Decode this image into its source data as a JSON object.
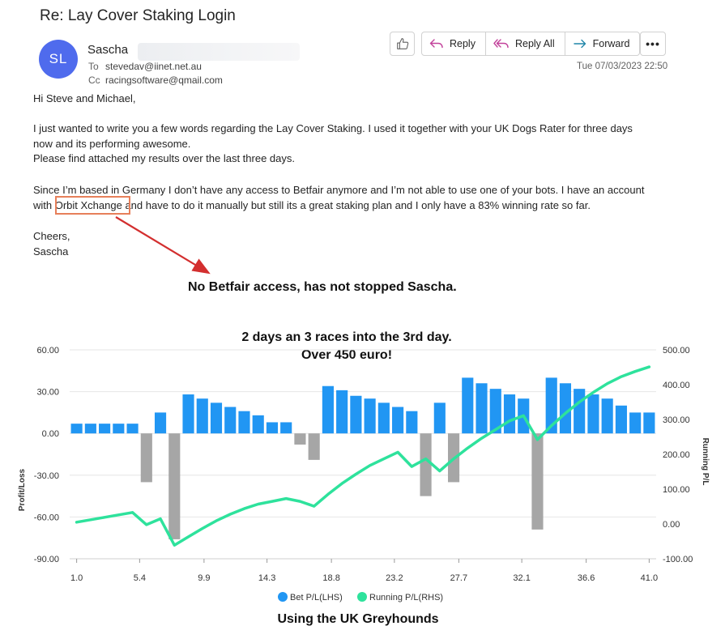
{
  "email": {
    "subject": "Re: Lay Cover Staking Login",
    "avatar_initials": "SL",
    "avatar_color": "#4f6bed",
    "sender_name": "Sascha",
    "to_label": "To",
    "to_value": "stevedav@iinet.net.au",
    "cc_label": "Cc",
    "cc_value": "racingsoftware@qmail.com",
    "actions": {
      "reply": "Reply",
      "reply_all": "Reply All",
      "forward": "Forward",
      "more": "•••"
    },
    "timestamp": "Tue 07/03/2023 22:50",
    "greeting": "Hi Steve and Michael,",
    "para1_line1": "I just wanted to write you a few words regarding the Lay Cover Staking. I used it together with your UK Dogs Rater for three days",
    "para1_line2": "now and its performing awesome.",
    "para1_line3": "Please find attached my results over the last three days.",
    "para2_line1": "Since I’m based in Germany I don’t have any access to Betfair anymore and I’m not able to use one of your bots. I have an account",
    "para2_line2": "with Orbit Xchange and have to do it manually but still its a great staking plan and I only have a 83% winning rate so far.",
    "signoff": "Cheers,",
    "signature": "Sascha"
  },
  "annotation": {
    "highlight_color": "#e77f5a",
    "arrow_color": "#d32f2f",
    "callout": "No Betfair access, has not stopped Sascha."
  },
  "chart_data": {
    "type": "bar",
    "title_line1": "2 days an 3 races into the 3rd day.",
    "title_line2": "Over 450 euro!",
    "caption": "Using the UK Greyhounds",
    "ylabel_left": "Profit/Loss",
    "ylabel_right": "Running P/L",
    "ylim_left": [
      -90,
      60
    ],
    "ylim_right": [
      -100,
      500
    ],
    "yticks_left": [
      "60.00",
      "30.00",
      "0.00",
      "-30.00",
      "-60.00",
      "-90.00"
    ],
    "yticks_right": [
      "500.00",
      "400.00",
      "300.00",
      "200.00",
      "100.00",
      "0.00",
      "-100.00"
    ],
    "xticks": [
      "1.0",
      "5.4",
      "9.9",
      "14.3",
      "18.8",
      "23.2",
      "27.7",
      "32.1",
      "36.6",
      "41.0"
    ],
    "xlim": [
      1,
      41
    ],
    "positive_color": "#2196f3",
    "negative_color": "#a6a6a6",
    "line_color": "#2ee29c",
    "grid": true,
    "legend_position": "bottom",
    "series": [
      {
        "name": "Bet P/L(LHS)",
        "values": [
          7,
          7,
          7,
          7,
          7,
          -35,
          15,
          -76,
          28,
          25,
          22,
          19,
          16,
          13,
          8,
          8,
          -8,
          -19,
          34,
          31,
          27,
          25,
          22,
          19,
          16,
          -45,
          22,
          -35,
          40,
          36,
          32,
          28,
          25,
          -69,
          40,
          36,
          32,
          28,
          25,
          20,
          15,
          15
        ]
      },
      {
        "name": "Running P/L(RHS)",
        "values": [
          5,
          12,
          19,
          26,
          33,
          -2,
          15,
          -61,
          -37,
          -13,
          9,
          28,
          44,
          57,
          65,
          73,
          65,
          51,
          85,
          116,
          143,
          168,
          187,
          206,
          165,
          187,
          152,
          187,
          218,
          246,
          271,
          296,
          311,
          242,
          282,
          318,
          350,
          378,
          403,
          423,
          438,
          451
        ]
      }
    ]
  }
}
